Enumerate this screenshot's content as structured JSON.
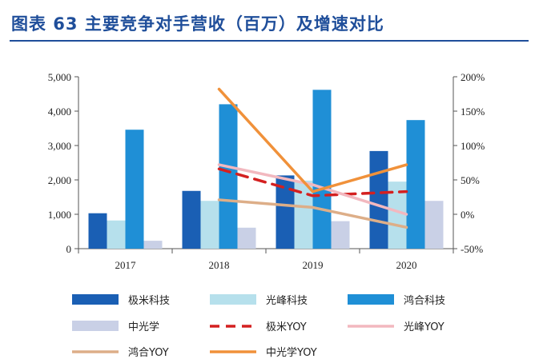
{
  "title": "图表 63   主要竞争对手营收（百万）及增速对比",
  "chart_data": {
    "type": "bar",
    "categories": [
      "2017",
      "2018",
      "2019",
      "2020"
    ],
    "y_left": {
      "min": 0,
      "max": 5000,
      "ticks": [
        "0",
        "1,000",
        "2,000",
        "3,000",
        "4,000",
        "5,000"
      ]
    },
    "y_right": {
      "min": -50,
      "max": 200,
      "ticks": [
        "-50%",
        "0%",
        "50%",
        "100%",
        "150%",
        "200%"
      ]
    },
    "series": [
      {
        "name": "极米科技",
        "kind": "bar",
        "axis": "left",
        "color": "#1a5fb4",
        "values": [
          1030,
          1680,
          2130,
          2840
        ]
      },
      {
        "name": "光峰科技",
        "kind": "bar",
        "axis": "left",
        "color": "#b6e0ec",
        "values": [
          820,
          1390,
          1980,
          1950
        ]
      },
      {
        "name": "鸿合科技",
        "kind": "bar",
        "axis": "left",
        "color": "#1f8fd6",
        "values": [
          3460,
          4200,
          4620,
          3740
        ]
      },
      {
        "name": "中光学",
        "kind": "bar",
        "axis": "left",
        "color": "#c9d0e6",
        "values": [
          230,
          610,
          800,
          1390
        ]
      },
      {
        "name": "极米YOY",
        "kind": "line",
        "axis": "right",
        "color": "#d42020",
        "dash": true,
        "values": [
          null,
          66,
          27,
          33
        ]
      },
      {
        "name": "光峰YOY",
        "kind": "line",
        "axis": "right",
        "color": "#f2b8bf",
        "dash": false,
        "values": [
          null,
          72,
          43,
          0
        ]
      },
      {
        "name": "鸿合YOY",
        "kind": "line",
        "axis": "right",
        "color": "#ddae88",
        "dash": false,
        "values": [
          null,
          21,
          10,
          -19
        ]
      },
      {
        "name": "中光学YOY",
        "kind": "line",
        "axis": "right",
        "color": "#f0913a",
        "dash": false,
        "values": [
          null,
          182,
          33,
          72
        ]
      }
    ],
    "legend_position": "bottom",
    "grid": false
  }
}
